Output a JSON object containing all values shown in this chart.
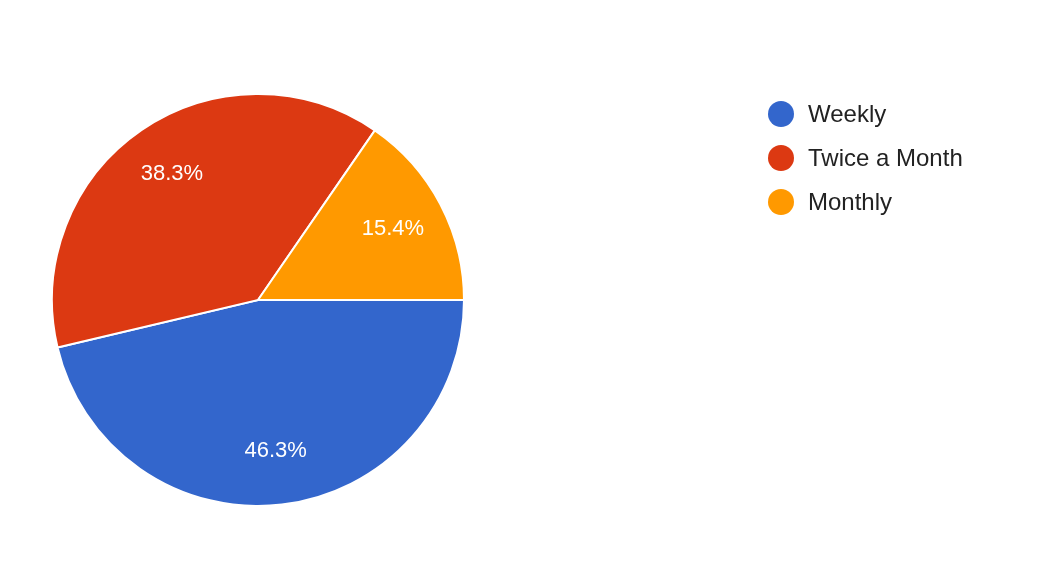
{
  "chart_data": {
    "type": "pie",
    "categories": [
      "Weekly",
      "Twice a Month",
      "Monthly"
    ],
    "values": [
      46.3,
      38.3,
      15.4
    ],
    "colors": [
      "#3366cc",
      "#dc3912",
      "#ff9900"
    ],
    "value_labels": [
      "46.3%",
      "38.3%",
      "15.4%"
    ],
    "legend": "right"
  }
}
